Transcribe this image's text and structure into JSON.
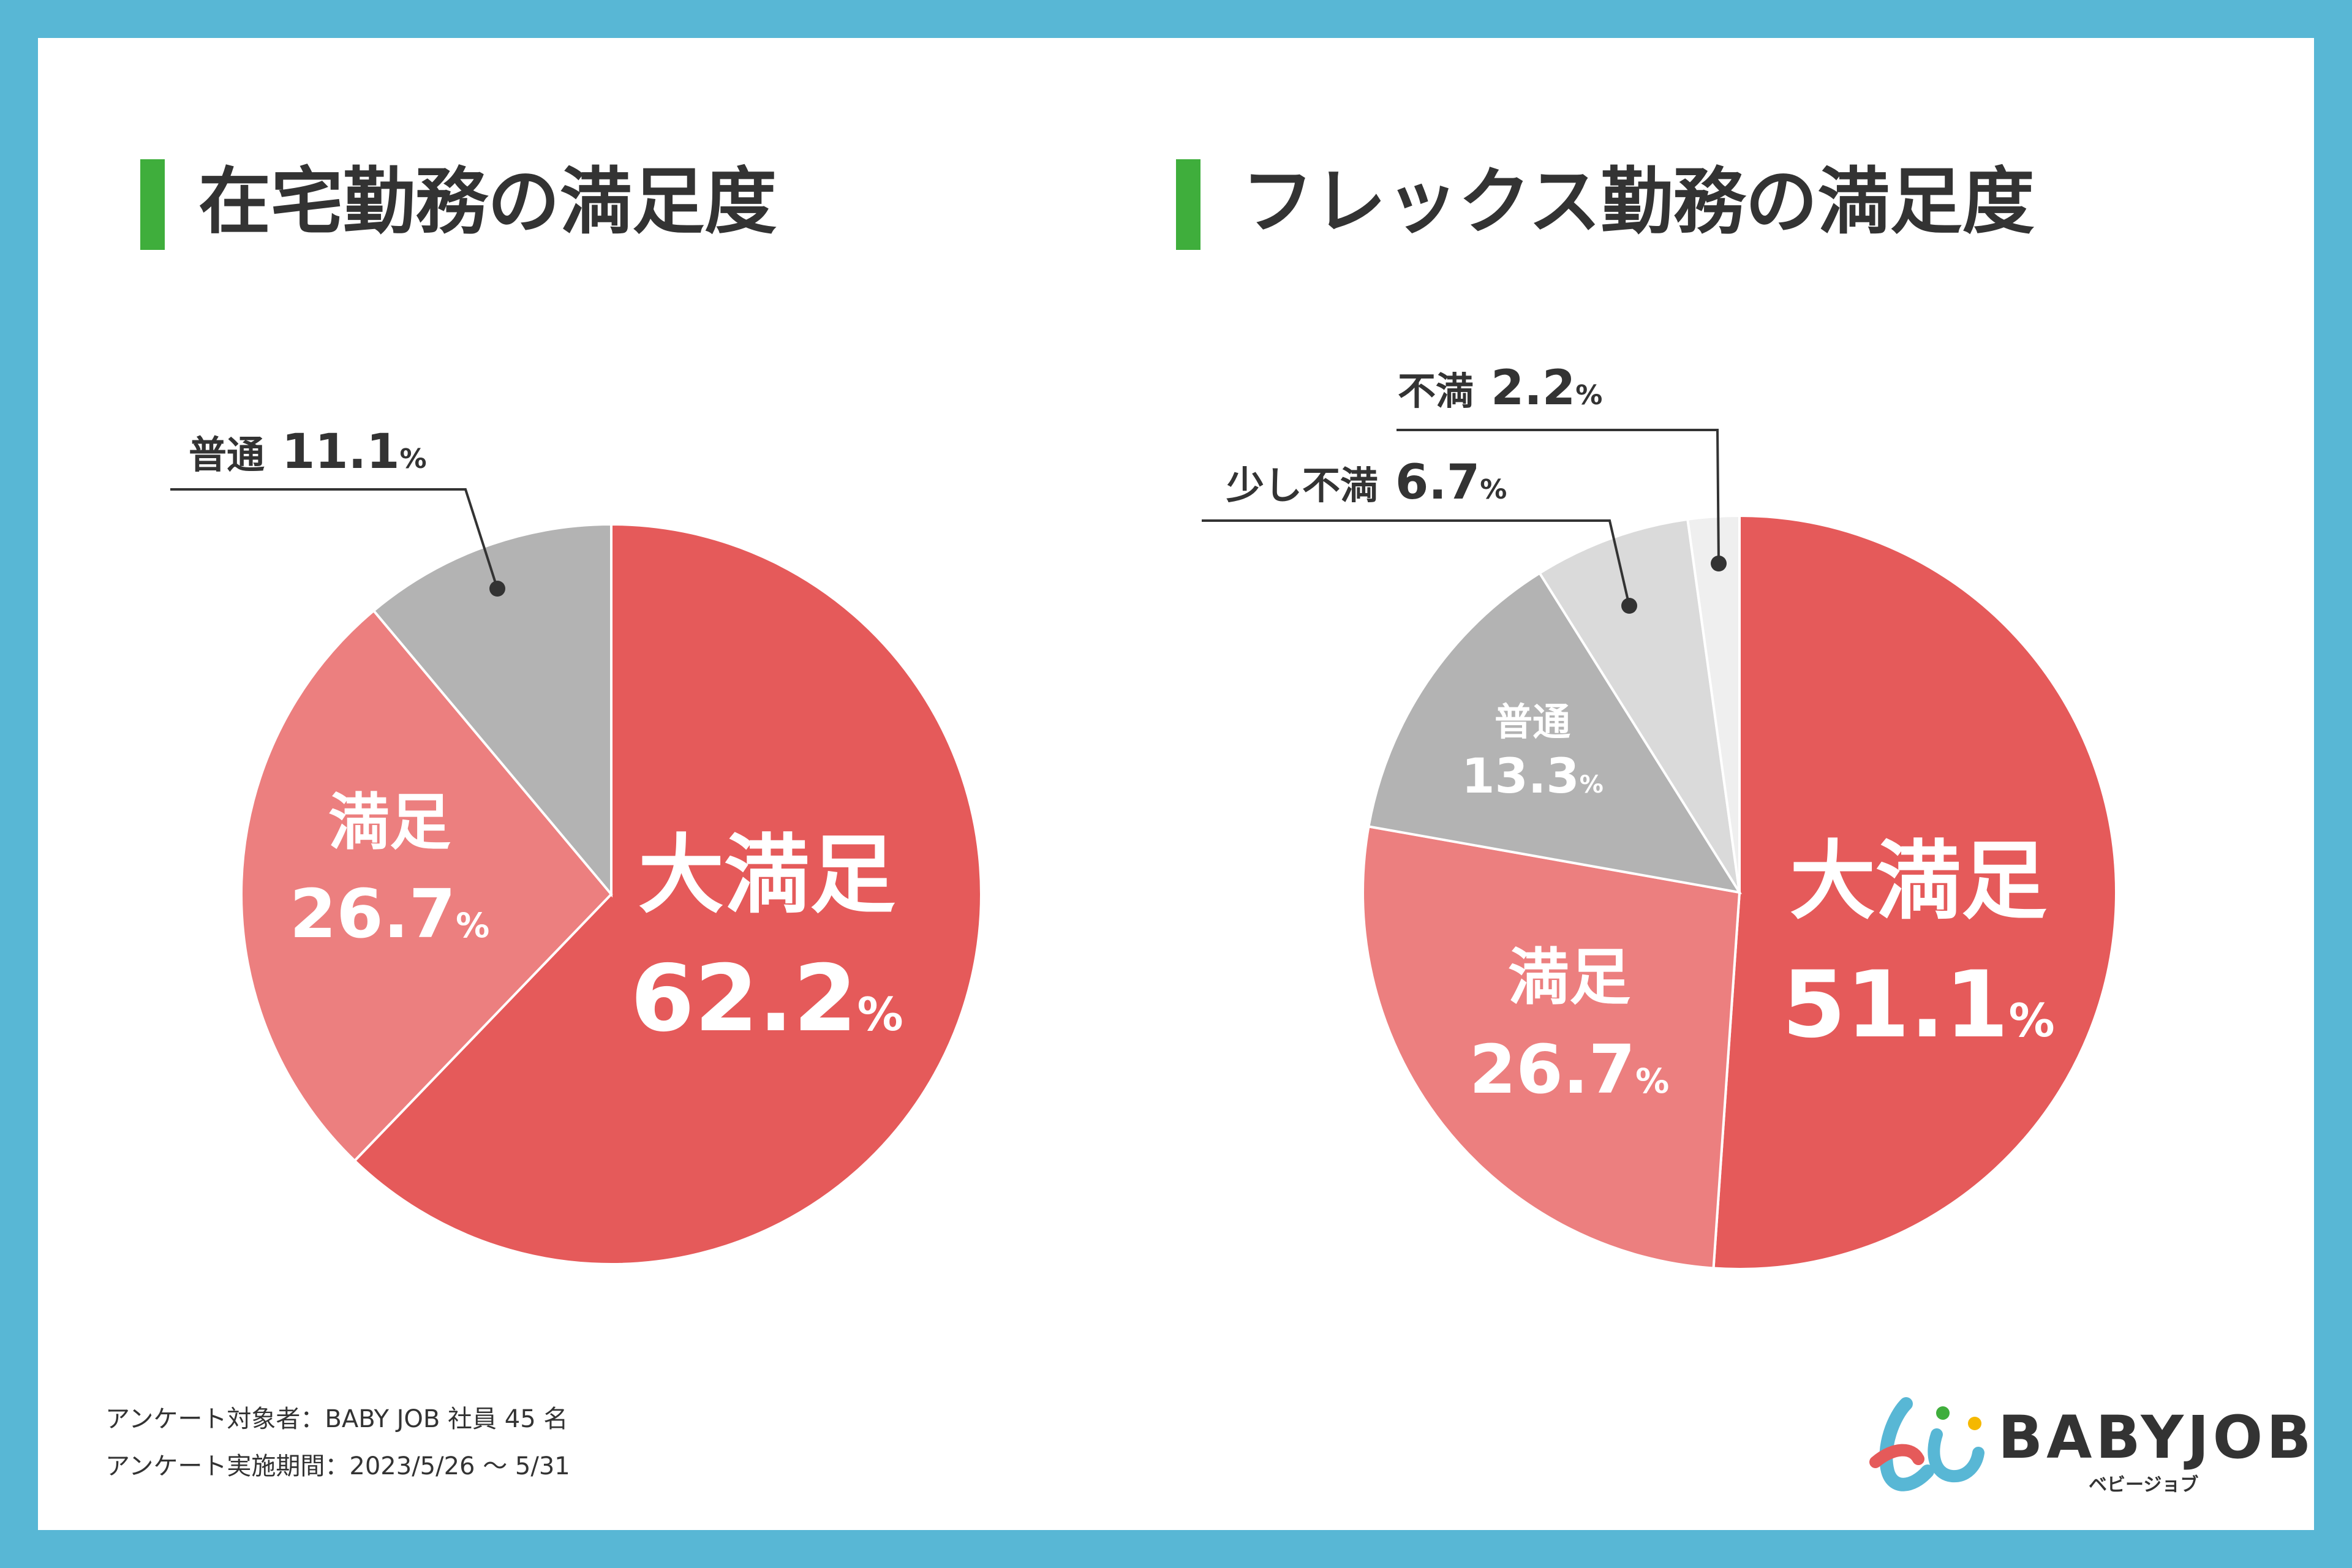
{
  "chart_data": [
    {
      "type": "pie",
      "title": "在宅勤務の満足度",
      "categories": [
        "大満足",
        "満足",
        "普通"
      ],
      "values": [
        62.2,
        26.7,
        11.1
      ],
      "unit": "%",
      "colors": [
        "#e55a5a",
        "#ec7f7f",
        "#b3b3b3"
      ]
    },
    {
      "type": "pie",
      "title": "フレックス勤務の満足度",
      "categories": [
        "大満足",
        "満足",
        "普通",
        "少し不満",
        "不満"
      ],
      "values": [
        51.1,
        26.7,
        13.3,
        6.7,
        2.2
      ],
      "unit": "%",
      "colors": [
        "#e55a5a",
        "#ec7f7f",
        "#b3b3b3",
        "#dadada",
        "#efefef"
      ]
    }
  ],
  "footnote": {
    "target": "アンケート対象者：BABY JOB 社員 45 名",
    "period": "アンケート実施期間：2023/5/26 〜 5/31"
  },
  "logo": {
    "name": "BABYJOB",
    "kana": "ベビージョブ"
  },
  "colors": {
    "accent": "#3fae3c",
    "frame": "#58b7d5"
  }
}
